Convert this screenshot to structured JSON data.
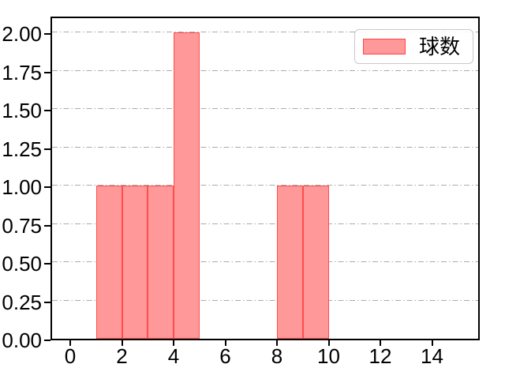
{
  "figure": {
    "background": "#ffffff",
    "spine_color": "#000000"
  },
  "chart_data": {
    "type": "bar",
    "subtype": "histogram",
    "title": "",
    "xlabel": "",
    "ylabel": "",
    "bars": [
      {
        "x_start": 1,
        "x_end": 2,
        "value": 1
      },
      {
        "x_start": 2,
        "x_end": 3,
        "value": 1
      },
      {
        "x_start": 3,
        "x_end": 4,
        "value": 1
      },
      {
        "x_start": 4,
        "x_end": 5,
        "value": 2
      },
      {
        "x_start": 8,
        "x_end": 9,
        "value": 1
      },
      {
        "x_start": 9,
        "x_end": 10,
        "value": 1
      }
    ],
    "bar_fill": "#ff9898",
    "bar_edge": "rgba(255,0,0,0.5)",
    "x_ticks": [
      0,
      2,
      4,
      6,
      8,
      10,
      12,
      14
    ],
    "y_tick_values": [
      0,
      0.25,
      0.5,
      0.75,
      1,
      1.25,
      1.5,
      1.75,
      2
    ],
    "y_tick_labels": [
      "0.00",
      "0.25",
      "0.50",
      "0.75",
      "1.00",
      "1.25",
      "1.50",
      "1.75",
      "2.00"
    ],
    "xlim": [
      -0.76,
      15.8
    ],
    "ylim": [
      0,
      2.09
    ],
    "grid": {
      "axis": "y",
      "style": "dash-dot",
      "color": "#ababab"
    },
    "legend": {
      "position": "upper right",
      "entries": [
        {
          "label": "球数",
          "fill": "#ff9898",
          "edge": "rgba(255,0,0,0.55)"
        }
      ]
    }
  }
}
